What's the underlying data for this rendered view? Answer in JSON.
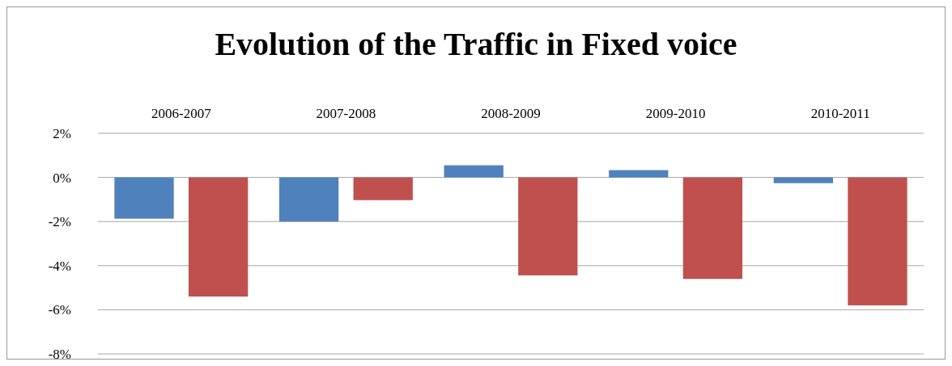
{
  "chart_data": {
    "type": "bar",
    "title": "Evolution of the Traffic in Fixed voice",
    "categories": [
      "2006-2007",
      "2007-2008",
      "2008-2009",
      "2009-2010",
      "2010-2011"
    ],
    "series": [
      {
        "color": "#4f81bd",
        "values": [
          -1.87,
          -2.0,
          0.55,
          0.33,
          -0.26
        ]
      },
      {
        "color": "#c0504d",
        "values": [
          -5.4,
          -1.03,
          -4.44,
          -4.6,
          -5.8
        ]
      }
    ],
    "ylim": [
      -8,
      2
    ],
    "yticks": [
      {
        "value": 2,
        "label": "2%"
      },
      {
        "value": 0,
        "label": "0%"
      },
      {
        "value": -2,
        "label": "-2%"
      },
      {
        "value": -4,
        "label": "-4%"
      },
      {
        "value": -6,
        "label": "-6%"
      },
      {
        "value": -8,
        "label": "-8%"
      }
    ],
    "grid": "y"
  }
}
